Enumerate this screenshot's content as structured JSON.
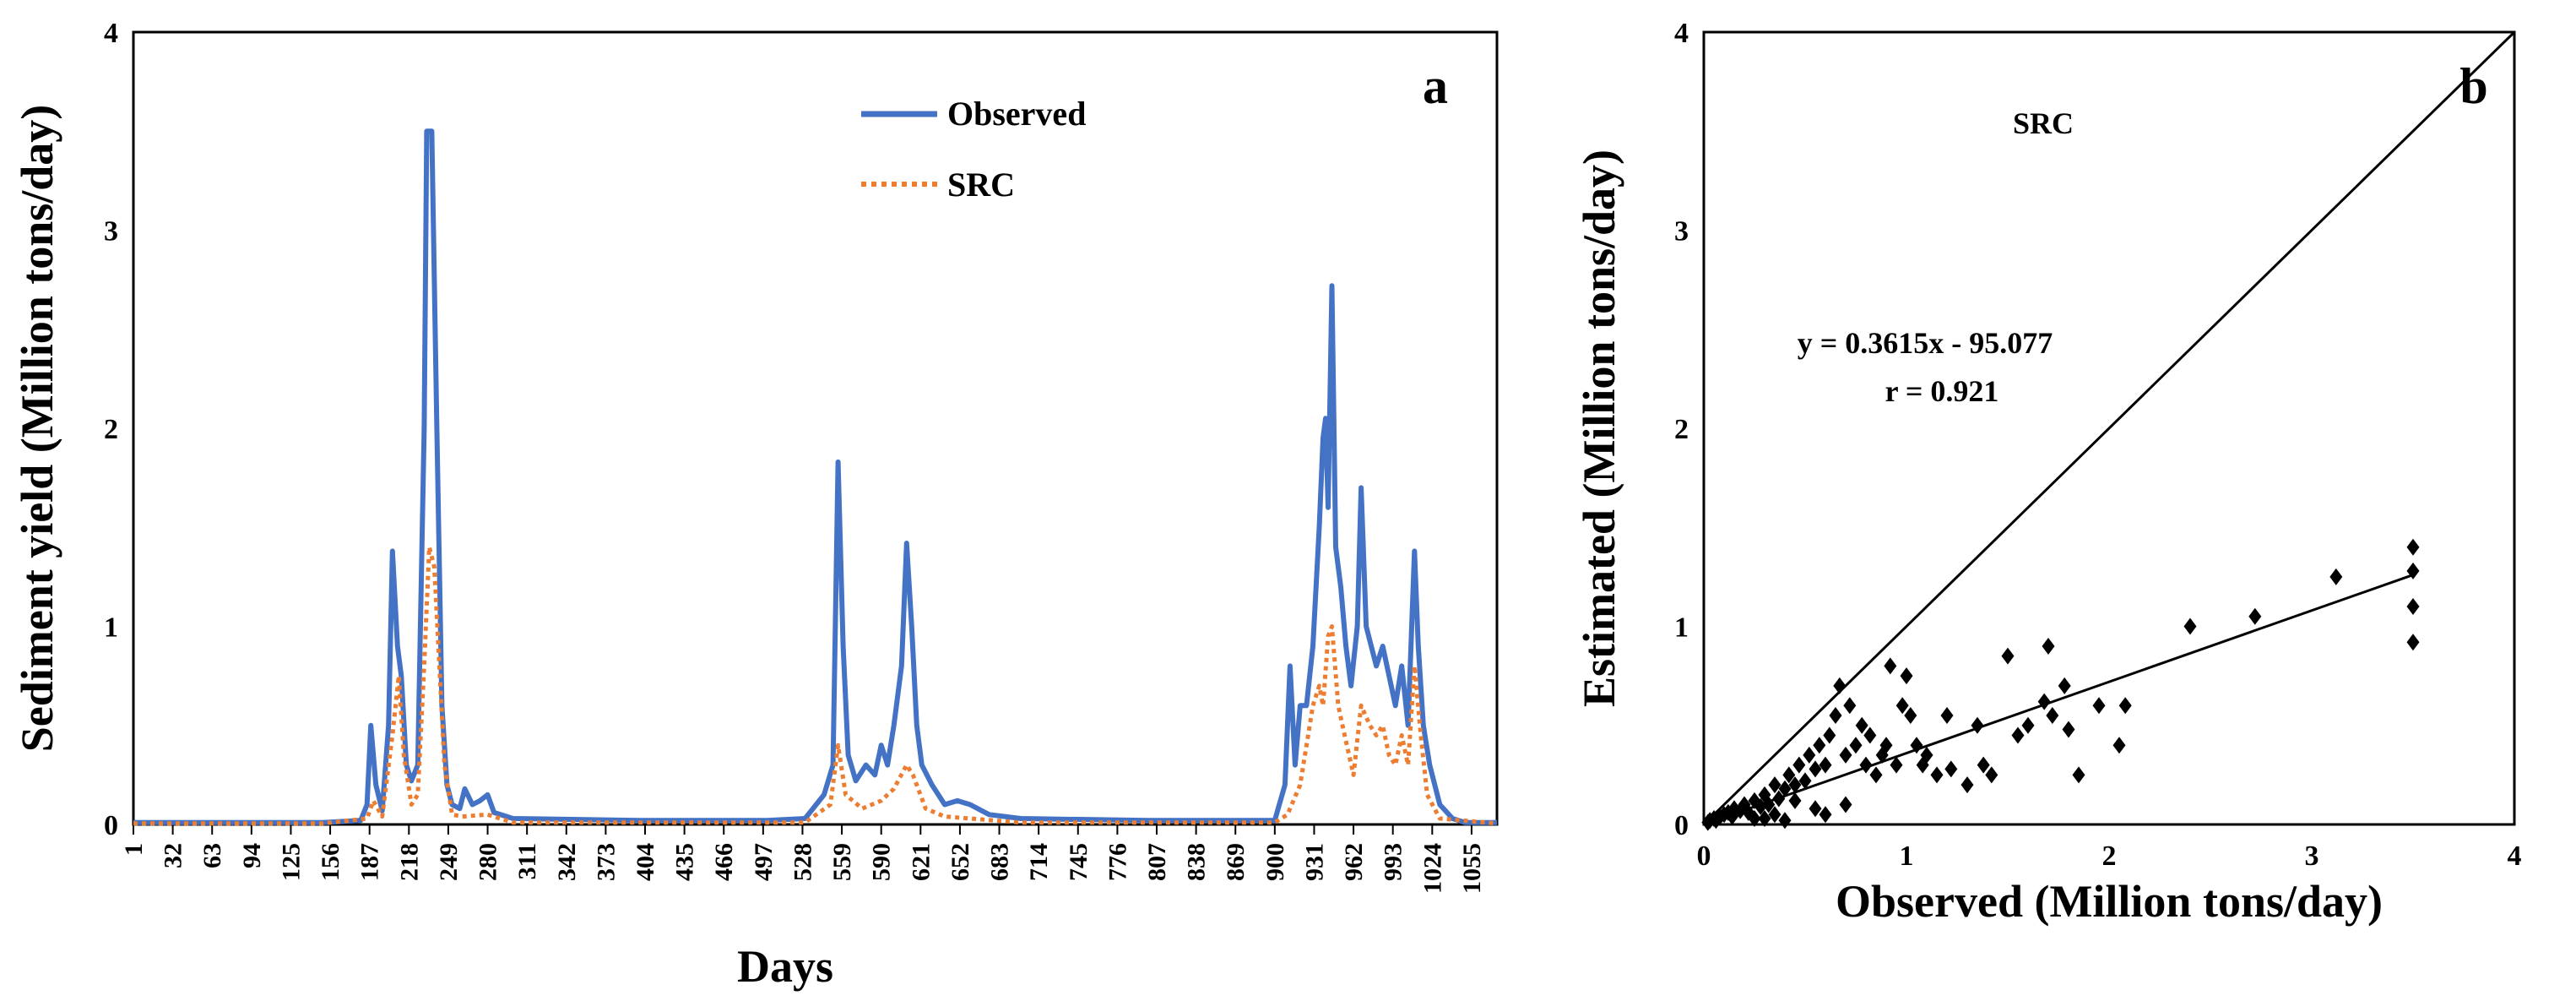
{
  "colors": {
    "observed": "#4472c4",
    "src": "#ed7d31",
    "axis": "#000000",
    "scatter": "#000000"
  },
  "chart_data": [
    {
      "panel": "a",
      "type": "line",
      "xlabel": "Days",
      "ylabel": "Sediment yield (Million tons/day)",
      "ylim": [
        0,
        4
      ],
      "yticks": [
        "0",
        "1",
        "2",
        "3",
        "4"
      ],
      "xlim": [
        1,
        1075
      ],
      "xticks": [
        "1",
        "32",
        "63",
        "94",
        "125",
        "156",
        "187",
        "218",
        "249",
        "280",
        "311",
        "342",
        "373",
        "404",
        "435",
        "466",
        "497",
        "528",
        "559",
        "590",
        "621",
        "652",
        "683",
        "714",
        "745",
        "776",
        "807",
        "838",
        "869",
        "900",
        "931",
        "962",
        "993",
        "1024",
        "1055"
      ],
      "legend": {
        "position": "top-center",
        "entries": [
          "Observed",
          "SRC"
        ]
      },
      "series": [
        {
          "name": "Observed",
          "style": "solid",
          "points": [
            [
              1,
              0.01
            ],
            [
              150,
              0.01
            ],
            [
              180,
              0.02
            ],
            [
              185,
              0.1
            ],
            [
              188,
              0.5
            ],
            [
              192,
              0.2
            ],
            [
              197,
              0.07
            ],
            [
              202,
              0.5
            ],
            [
              205,
              1.38
            ],
            [
              209,
              0.9
            ],
            [
              212,
              0.75
            ],
            [
              216,
              0.3
            ],
            [
              220,
              0.22
            ],
            [
              225,
              0.3
            ],
            [
              230,
              2.0
            ],
            [
              232,
              3.5
            ],
            [
              236,
              3.5
            ],
            [
              240,
              2.0
            ],
            [
              244,
              0.6
            ],
            [
              248,
              0.2
            ],
            [
              252,
              0.1
            ],
            [
              258,
              0.08
            ],
            [
              262,
              0.18
            ],
            [
              268,
              0.1
            ],
            [
              274,
              0.12
            ],
            [
              280,
              0.15
            ],
            [
              285,
              0.06
            ],
            [
              300,
              0.03
            ],
            [
              400,
              0.02
            ],
            [
              500,
              0.02
            ],
            [
              530,
              0.03
            ],
            [
              545,
              0.15
            ],
            [
              552,
              0.3
            ],
            [
              556,
              1.83
            ],
            [
              560,
              0.9
            ],
            [
              564,
              0.35
            ],
            [
              570,
              0.22
            ],
            [
              578,
              0.3
            ],
            [
              585,
              0.25
            ],
            [
              590,
              0.4
            ],
            [
              595,
              0.3
            ],
            [
              600,
              0.5
            ],
            [
              606,
              0.8
            ],
            [
              610,
              1.42
            ],
            [
              614,
              1.0
            ],
            [
              618,
              0.5
            ],
            [
              622,
              0.3
            ],
            [
              630,
              0.2
            ],
            [
              640,
              0.1
            ],
            [
              650,
              0.12
            ],
            [
              660,
              0.1
            ],
            [
              675,
              0.05
            ],
            [
              700,
              0.03
            ],
            [
              800,
              0.02
            ],
            [
              900,
              0.02
            ],
            [
              908,
              0.2
            ],
            [
              912,
              0.8
            ],
            [
              916,
              0.3
            ],
            [
              920,
              0.6
            ],
            [
              925,
              0.6
            ],
            [
              930,
              0.9
            ],
            [
              935,
              1.5
            ],
            [
              938,
              1.95
            ],
            [
              940,
              2.05
            ],
            [
              942,
              1.6
            ],
            [
              945,
              2.72
            ],
            [
              948,
              1.4
            ],
            [
              952,
              1.2
            ],
            [
              956,
              0.9
            ],
            [
              960,
              0.7
            ],
            [
              965,
              1.0
            ],
            [
              968,
              1.7
            ],
            [
              972,
              1.0
            ],
            [
              976,
              0.9
            ],
            [
              980,
              0.8
            ],
            [
              985,
              0.9
            ],
            [
              990,
              0.75
            ],
            [
              995,
              0.6
            ],
            [
              1000,
              0.8
            ],
            [
              1005,
              0.5
            ],
            [
              1010,
              1.38
            ],
            [
              1013,
              0.9
            ],
            [
              1017,
              0.5
            ],
            [
              1022,
              0.3
            ],
            [
              1030,
              0.1
            ],
            [
              1040,
              0.03
            ],
            [
              1050,
              0.01
            ],
            [
              1075,
              0.01
            ]
          ]
        },
        {
          "name": "SRC",
          "style": "dotted",
          "points": [
            [
              1,
              0.005
            ],
            [
              150,
              0.005
            ],
            [
              185,
              0.03
            ],
            [
              190,
              0.12
            ],
            [
              197,
              0.04
            ],
            [
              205,
              0.45
            ],
            [
              210,
              0.75
            ],
            [
              214,
              0.35
            ],
            [
              220,
              0.1
            ],
            [
              225,
              0.15
            ],
            [
              230,
              0.8
            ],
            [
              234,
              1.4
            ],
            [
              238,
              1.3
            ],
            [
              242,
              0.8
            ],
            [
              246,
              0.3
            ],
            [
              252,
              0.05
            ],
            [
              260,
              0.04
            ],
            [
              280,
              0.05
            ],
            [
              300,
              0.01
            ],
            [
              530,
              0.01
            ],
            [
              550,
              0.1
            ],
            [
              556,
              0.4
            ],
            [
              562,
              0.15
            ],
            [
              575,
              0.08
            ],
            [
              590,
              0.12
            ],
            [
              600,
              0.18
            ],
            [
              610,
              0.3
            ],
            [
              615,
              0.25
            ],
            [
              625,
              0.08
            ],
            [
              640,
              0.04
            ],
            [
              700,
              0.01
            ],
            [
              900,
              0.01
            ],
            [
              910,
              0.05
            ],
            [
              920,
              0.2
            ],
            [
              930,
              0.6
            ],
            [
              935,
              0.7
            ],
            [
              938,
              0.6
            ],
            [
              942,
              0.95
            ],
            [
              945,
              1.0
            ],
            [
              950,
              0.6
            ],
            [
              955,
              0.45
            ],
            [
              962,
              0.25
            ],
            [
              968,
              0.6
            ],
            [
              975,
              0.5
            ],
            [
              980,
              0.45
            ],
            [
              985,
              0.5
            ],
            [
              990,
              0.35
            ],
            [
              995,
              0.3
            ],
            [
              1000,
              0.45
            ],
            [
              1005,
              0.3
            ],
            [
              1010,
              0.8
            ],
            [
              1015,
              0.45
            ],
            [
              1020,
              0.15
            ],
            [
              1030,
              0.03
            ],
            [
              1075,
              0.005
            ]
          ]
        }
      ],
      "panel_label": "a"
    },
    {
      "panel": "b",
      "type": "scatter",
      "title": "SRC",
      "xlabel": "Observed (Million tons/day)",
      "ylabel": "Estimated (Million tons/day)",
      "xlim": [
        0,
        4
      ],
      "ylim": [
        0,
        4
      ],
      "xticks": [
        "0",
        "1",
        "2",
        "3",
        "4"
      ],
      "yticks": [
        "0",
        "1",
        "2",
        "3",
        "4"
      ],
      "equation": "y = 0.3615x - 95.077",
      "r_text": "r = 0.921",
      "panel_label": "b",
      "reference_line": [
        [
          0,
          0
        ],
        [
          4,
          4
        ]
      ],
      "fit_line": [
        [
          0,
          0.0
        ],
        [
          3.5,
          1.26
        ]
      ],
      "points": [
        [
          0.02,
          0.01
        ],
        [
          0.03,
          0.02
        ],
        [
          0.05,
          0.03
        ],
        [
          0.06,
          0.02
        ],
        [
          0.08,
          0.04
        ],
        [
          0.1,
          0.05
        ],
        [
          0.12,
          0.06
        ],
        [
          0.14,
          0.04
        ],
        [
          0.15,
          0.08
        ],
        [
          0.18,
          0.07
        ],
        [
          0.2,
          0.1
        ],
        [
          0.22,
          0.06
        ],
        [
          0.25,
          0.12
        ],
        [
          0.28,
          0.09
        ],
        [
          0.3,
          0.15
        ],
        [
          0.32,
          0.1
        ],
        [
          0.35,
          0.2
        ],
        [
          0.37,
          0.13
        ],
        [
          0.4,
          0.18
        ],
        [
          0.42,
          0.25
        ],
        [
          0.45,
          0.2
        ],
        [
          0.47,
          0.3
        ],
        [
          0.5,
          0.22
        ],
        [
          0.52,
          0.35
        ],
        [
          0.55,
          0.28
        ],
        [
          0.57,
          0.4
        ],
        [
          0.6,
          0.3
        ],
        [
          0.62,
          0.45
        ],
        [
          0.65,
          0.55
        ],
        [
          0.67,
          0.7
        ],
        [
          0.7,
          0.35
        ],
        [
          0.72,
          0.6
        ],
        [
          0.75,
          0.4
        ],
        [
          0.78,
          0.5
        ],
        [
          0.8,
          0.3
        ],
        [
          0.82,
          0.45
        ],
        [
          0.85,
          0.25
        ],
        [
          0.88,
          0.35
        ],
        [
          0.9,
          0.4
        ],
        [
          0.92,
          0.8
        ],
        [
          0.95,
          0.3
        ],
        [
          0.98,
          0.6
        ],
        [
          1.0,
          0.75
        ],
        [
          1.02,
          0.55
        ],
        [
          1.05,
          0.4
        ],
        [
          1.08,
          0.3
        ],
        [
          1.1,
          0.35
        ],
        [
          1.15,
          0.25
        ],
        [
          1.2,
          0.55
        ],
        [
          1.22,
          0.28
        ],
        [
          1.3,
          0.2
        ],
        [
          1.35,
          0.5
        ],
        [
          1.38,
          0.3
        ],
        [
          1.42,
          0.25
        ],
        [
          1.5,
          0.85
        ],
        [
          1.55,
          0.45
        ],
        [
          1.6,
          0.5
        ],
        [
          1.68,
          0.62
        ],
        [
          1.7,
          0.9
        ],
        [
          1.72,
          0.55
        ],
        [
          1.78,
          0.7
        ],
        [
          1.8,
          0.48
        ],
        [
          1.85,
          0.25
        ],
        [
          1.95,
          0.6
        ],
        [
          2.05,
          0.4
        ],
        [
          2.08,
          0.6
        ],
        [
          2.4,
          1.0
        ],
        [
          2.72,
          1.05
        ],
        [
          3.12,
          1.25
        ],
        [
          3.5,
          1.4
        ],
        [
          3.5,
          1.28
        ],
        [
          3.5,
          1.1
        ],
        [
          3.5,
          0.92
        ],
        [
          0.6,
          0.05
        ],
        [
          0.4,
          0.02
        ],
        [
          0.3,
          0.03
        ],
        [
          0.7,
          0.1
        ],
        [
          0.55,
          0.08
        ],
        [
          0.45,
          0.12
        ],
        [
          0.35,
          0.05
        ],
        [
          0.25,
          0.03
        ]
      ]
    }
  ]
}
